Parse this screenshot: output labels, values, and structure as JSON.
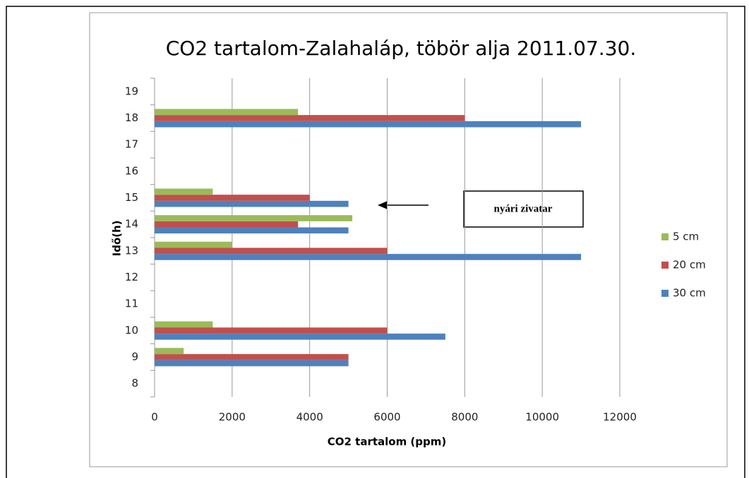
{
  "chart_data": {
    "type": "hbar",
    "title": "CO2 tartalom-Zalahaláp, töbör alja 2011.07.30.",
    "x_label": "CO2 tartalom (ppm)",
    "y_label": "Idő(h)",
    "annotation": "nyári zivatar",
    "categories": [
      "8",
      "9",
      "10",
      "11",
      "12",
      "13",
      "14",
      "15",
      "16",
      "17",
      "18",
      "19"
    ],
    "series": [
      {
        "name": "30 cm",
        "color": "#4f81bd",
        "values": [
          null,
          5000,
          7500,
          null,
          null,
          11000,
          5000,
          5000,
          null,
          null,
          11000,
          null
        ]
      },
      {
        "name": "20 cm",
        "color": "#c0504d",
        "values": [
          null,
          5000,
          6000,
          null,
          null,
          6000,
          3700,
          4000,
          null,
          null,
          8000,
          null
        ]
      },
      {
        "name": "5 cm",
        "color": "#9bbb59",
        "values": [
          null,
          750,
          1500,
          null,
          null,
          2000,
          5100,
          1500,
          null,
          null,
          3700,
          null
        ]
      }
    ],
    "xlim": [
      0,
      12000
    ],
    "xticks": [
      0,
      2000,
      4000,
      6000,
      8000,
      10000,
      12000
    ],
    "grid": true,
    "legend": "right"
  }
}
